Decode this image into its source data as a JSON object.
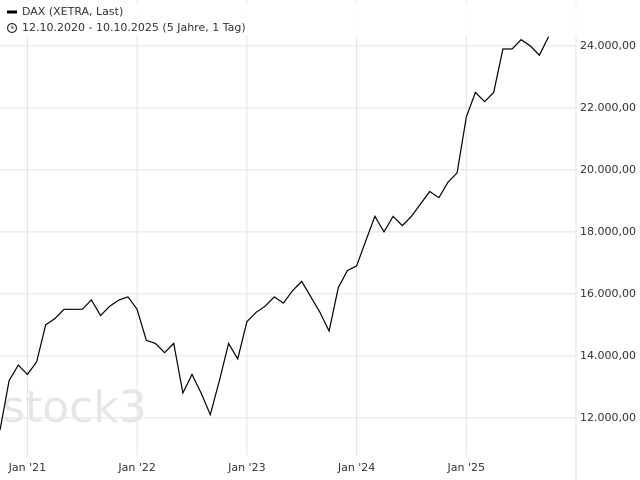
{
  "chart_data": {
    "type": "line",
    "title": "DAX (XETRA, Last)",
    "subtitle": "12.10.2020 - 10.10.2025  (5 Jahre, 1 Tag)",
    "watermark": "stock3",
    "x": [
      "2020-10",
      "2020-11",
      "2020-12",
      "2021-01",
      "2021-02",
      "2021-03",
      "2021-04",
      "2021-05",
      "2021-06",
      "2021-07",
      "2021-08",
      "2021-09",
      "2021-10",
      "2021-11",
      "2021-12",
      "2022-01",
      "2022-02",
      "2022-03",
      "2022-04",
      "2022-05",
      "2022-06",
      "2022-07",
      "2022-08",
      "2022-09",
      "2022-10",
      "2022-11",
      "2022-12",
      "2023-01",
      "2023-02",
      "2023-03",
      "2023-04",
      "2023-05",
      "2023-06",
      "2023-07",
      "2023-08",
      "2023-09",
      "2023-10",
      "2023-11",
      "2023-12",
      "2024-01",
      "2024-02",
      "2024-03",
      "2024-04",
      "2024-05",
      "2024-06",
      "2024-07",
      "2024-08",
      "2024-09",
      "2024-10",
      "2024-11",
      "2024-12",
      "2025-01",
      "2025-02",
      "2025-03",
      "2025-04",
      "2025-05",
      "2025-06",
      "2025-07",
      "2025-08",
      "2025-09",
      "2025-10"
    ],
    "series": [
      {
        "name": "DAX (XETRA, Last)",
        "color": "#000000",
        "values": [
          11600,
          13200,
          13700,
          13400,
          13800,
          15000,
          15200,
          15500,
          15500,
          15500,
          15800,
          15300,
          15600,
          15800,
          15900,
          15500,
          14500,
          14400,
          14100,
          14400,
          12800,
          13400,
          12800,
          12100,
          13200,
          14400,
          13900,
          15100,
          15400,
          15600,
          15900,
          15700,
          16100,
          16400,
          15900,
          15400,
          14800,
          16200,
          16750,
          16900,
          17700,
          18500,
          18000,
          18500,
          18200,
          18500,
          18900,
          19300,
          19100,
          19600,
          19900,
          21700,
          22500,
          22200,
          22500,
          23900,
          23900,
          24200,
          24000,
          23700,
          24300
        ]
      }
    ],
    "xlim": [
      "2020-10",
      "2026-01"
    ],
    "xticks": [
      {
        "value": "2021-01",
        "label": "Jan '21"
      },
      {
        "value": "2022-01",
        "label": "Jan '22"
      },
      {
        "value": "2023-01",
        "label": "Jan '23"
      },
      {
        "value": "2024-01",
        "label": "Jan '24"
      },
      {
        "value": "2025-01",
        "label": "Jan '25"
      }
    ],
    "ylim": [
      10800,
      25480
    ],
    "yticks": [
      {
        "value": 12000,
        "label": "12.000,00"
      },
      {
        "value": 14000,
        "label": "14.000,00"
      },
      {
        "value": 16000,
        "label": "16.000,00"
      },
      {
        "value": 18000,
        "label": "18.000,00"
      },
      {
        "value": 20000,
        "label": "20.000,00"
      },
      {
        "value": 22000,
        "label": "22.000,00"
      },
      {
        "value": 24000,
        "label": "24.000,00"
      }
    ],
    "grid": true
  }
}
